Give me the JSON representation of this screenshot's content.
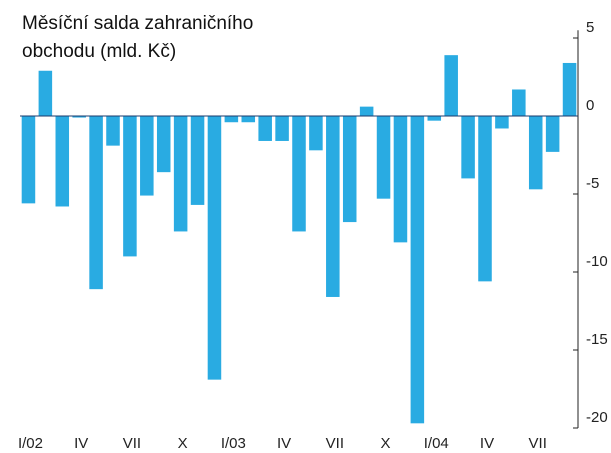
{
  "chart_data": {
    "type": "bar",
    "title": [
      "Měsíční salda zahraničního",
      "obchodu (mld. Kč)"
    ],
    "categories": [
      "I/02",
      null,
      null,
      "IV",
      null,
      null,
      "VII",
      null,
      null,
      "X",
      null,
      null,
      "I/03",
      null,
      null,
      "IV",
      null,
      null,
      "VII",
      null,
      null,
      "X",
      null,
      null,
      "I/04",
      null,
      null,
      "IV",
      null,
      null,
      "VII",
      null,
      null
    ],
    "values": [
      -5.6,
      2.9,
      -5.8,
      -0.1,
      -11.1,
      -1.9,
      -9.0,
      -5.1,
      -3.6,
      -7.4,
      -5.7,
      -16.9,
      -0.4,
      -0.4,
      -1.6,
      -1.6,
      -7.4,
      -2.2,
      -11.6,
      -6.8,
      0.6,
      -5.3,
      -8.1,
      -19.7,
      -0.3,
      3.9,
      -4.0,
      -10.6,
      -0.8,
      1.7,
      -4.7,
      -2.3,
      3.4
    ],
    "color": "#29abe2",
    "ylim": [
      -20,
      5.5
    ],
    "yticks": [
      5,
      0,
      -5,
      -10,
      -15,
      -20
    ]
  }
}
